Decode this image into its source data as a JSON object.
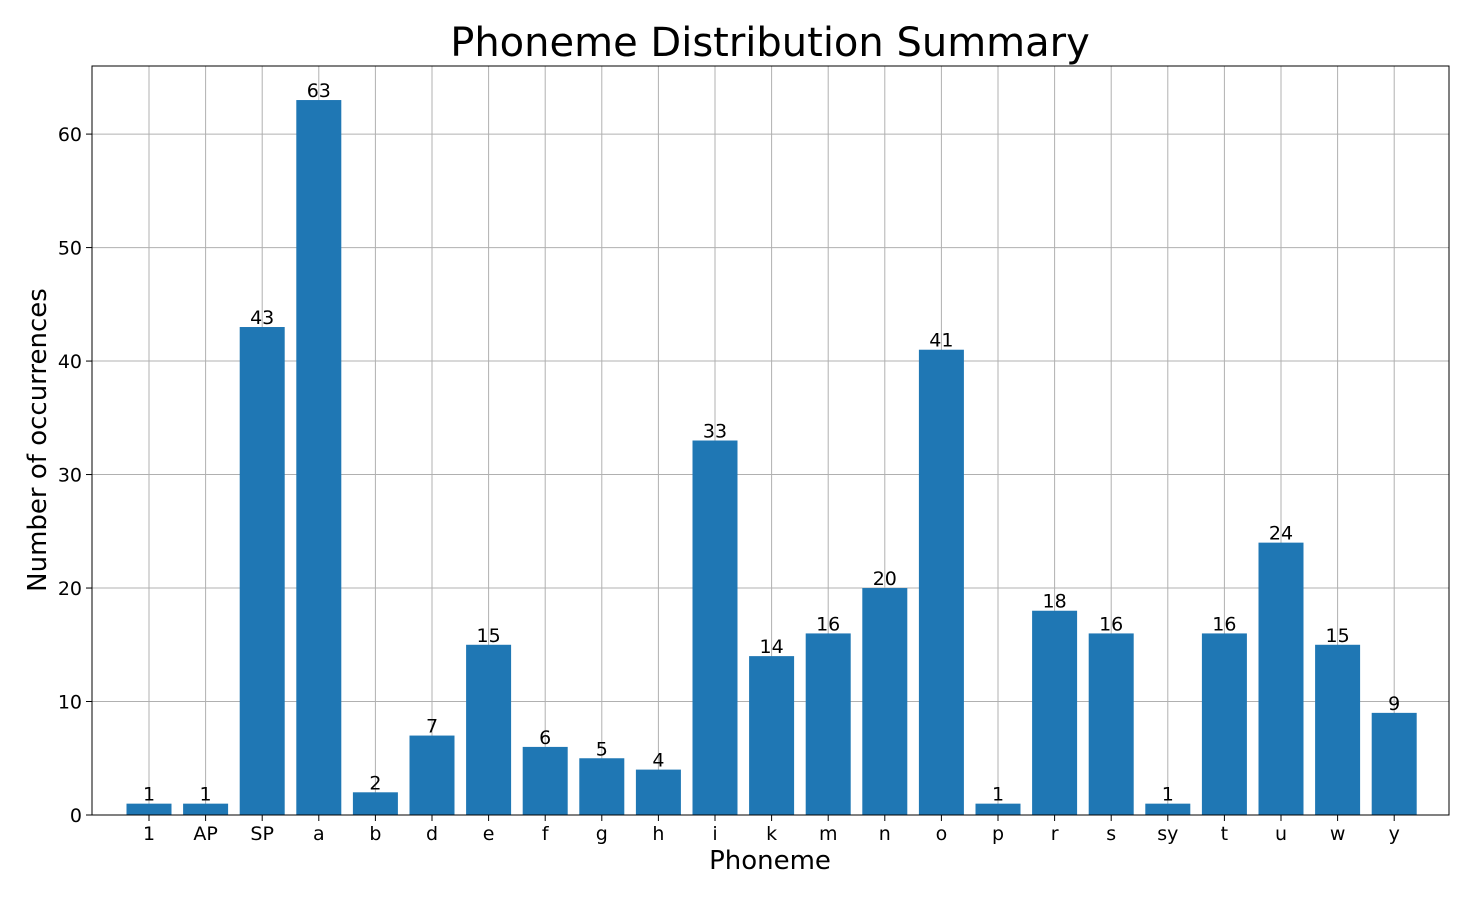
{
  "chart_data": {
    "type": "bar",
    "title": "Phoneme Distribution Summary",
    "xlabel": "Phoneme",
    "ylabel": "Number of occurrences",
    "categories": [
      "1",
      "AP",
      "SP",
      "a",
      "b",
      "d",
      "e",
      "f",
      "g",
      "h",
      "i",
      "k",
      "m",
      "n",
      "o",
      "p",
      "r",
      "s",
      "sy",
      "t",
      "u",
      "w",
      "y"
    ],
    "values": [
      1,
      1,
      43,
      63,
      2,
      7,
      15,
      6,
      5,
      4,
      33,
      14,
      16,
      20,
      41,
      1,
      18,
      16,
      1,
      16,
      24,
      15,
      9
    ],
    "ylim": [
      0,
      66
    ],
    "yticks": [
      0,
      10,
      20,
      30,
      40,
      50,
      60
    ],
    "grid": true,
    "colors": {
      "bar": "#1f77b4",
      "grid": "#b0b0b0"
    }
  }
}
